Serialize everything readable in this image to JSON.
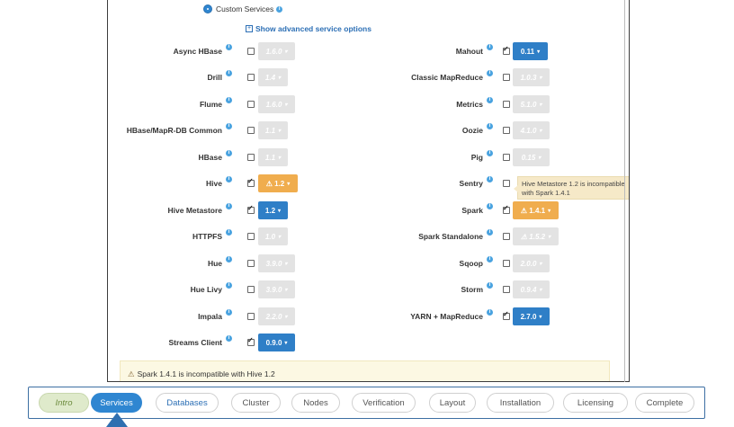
{
  "custom_services": {
    "label": "Custom Services"
  },
  "advanced_link": {
    "label": "Show advanced service options"
  },
  "services": {
    "async_hbase": {
      "label": "Async HBase",
      "version": "1.6.0",
      "checked": false
    },
    "drill": {
      "label": "Drill",
      "version": "1.4",
      "checked": false
    },
    "flume": {
      "label": "Flume",
      "version": "1.6.0",
      "checked": false
    },
    "hbase_maprdb": {
      "label": "HBase/MapR-DB Common",
      "version": "1.1",
      "checked": false
    },
    "hbase": {
      "label": "HBase",
      "version": "1.1",
      "checked": false
    },
    "hive": {
      "label": "Hive",
      "version": "1.2",
      "checked": true,
      "status": "warning"
    },
    "hive_metastore": {
      "label": "Hive Metastore",
      "version": "1.2",
      "checked": true
    },
    "httpfs": {
      "label": "HTTPFS",
      "version": "1.0",
      "checked": false
    },
    "hue": {
      "label": "Hue",
      "version": "3.9.0",
      "checked": false
    },
    "hue_livy": {
      "label": "Hue Livy",
      "version": "3.9.0",
      "checked": false
    },
    "impala": {
      "label": "Impala",
      "version": "2.2.0",
      "checked": false
    },
    "streams_client": {
      "label": "Streams Client",
      "version": "0.9.0",
      "checked": true
    },
    "mahout": {
      "label": "Mahout",
      "version": "0.11",
      "checked": true
    },
    "classic_mapreduce": {
      "label": "Classic MapReduce",
      "version": "1.0.3",
      "checked": false
    },
    "metrics": {
      "label": "Metrics",
      "version": "5.1.0",
      "checked": false
    },
    "oozie": {
      "label": "Oozie",
      "version": "4.1.0",
      "checked": false
    },
    "pig": {
      "label": "Pig",
      "version": "0.15",
      "checked": false
    },
    "sentry": {
      "label": "Sentry",
      "checked": false
    },
    "spark": {
      "label": "Spark",
      "version": "1.4.1",
      "checked": true,
      "status": "warning"
    },
    "spark_standalone": {
      "label": "Spark Standalone",
      "version": "1.5.2",
      "checked": false
    },
    "sqoop": {
      "label": "Sqoop",
      "version": "2.0.0",
      "checked": false
    },
    "storm": {
      "label": "Storm",
      "version": "0.9.4",
      "checked": false
    },
    "yarn_mapreduce": {
      "label": "YARN + MapReduce",
      "version": "2.7.0",
      "checked": true
    }
  },
  "tooltip": {
    "text": "Hive Metastore 1.2 is incompatible with Spark 1.4.1"
  },
  "warning_bar": {
    "text": "Spark 1.4.1 is incompatible with Hive 1.2"
  },
  "wizard": {
    "steps": [
      "Intro",
      "Services",
      "Databases",
      "Cluster",
      "Nodes",
      "Verification",
      "Layout",
      "Installation",
      "Licensing",
      "Complete"
    ],
    "active": "Services"
  },
  "colors": {
    "accent": "#2f86d1",
    "warning": "#f0ad4e",
    "intro": "#dfeacb"
  }
}
